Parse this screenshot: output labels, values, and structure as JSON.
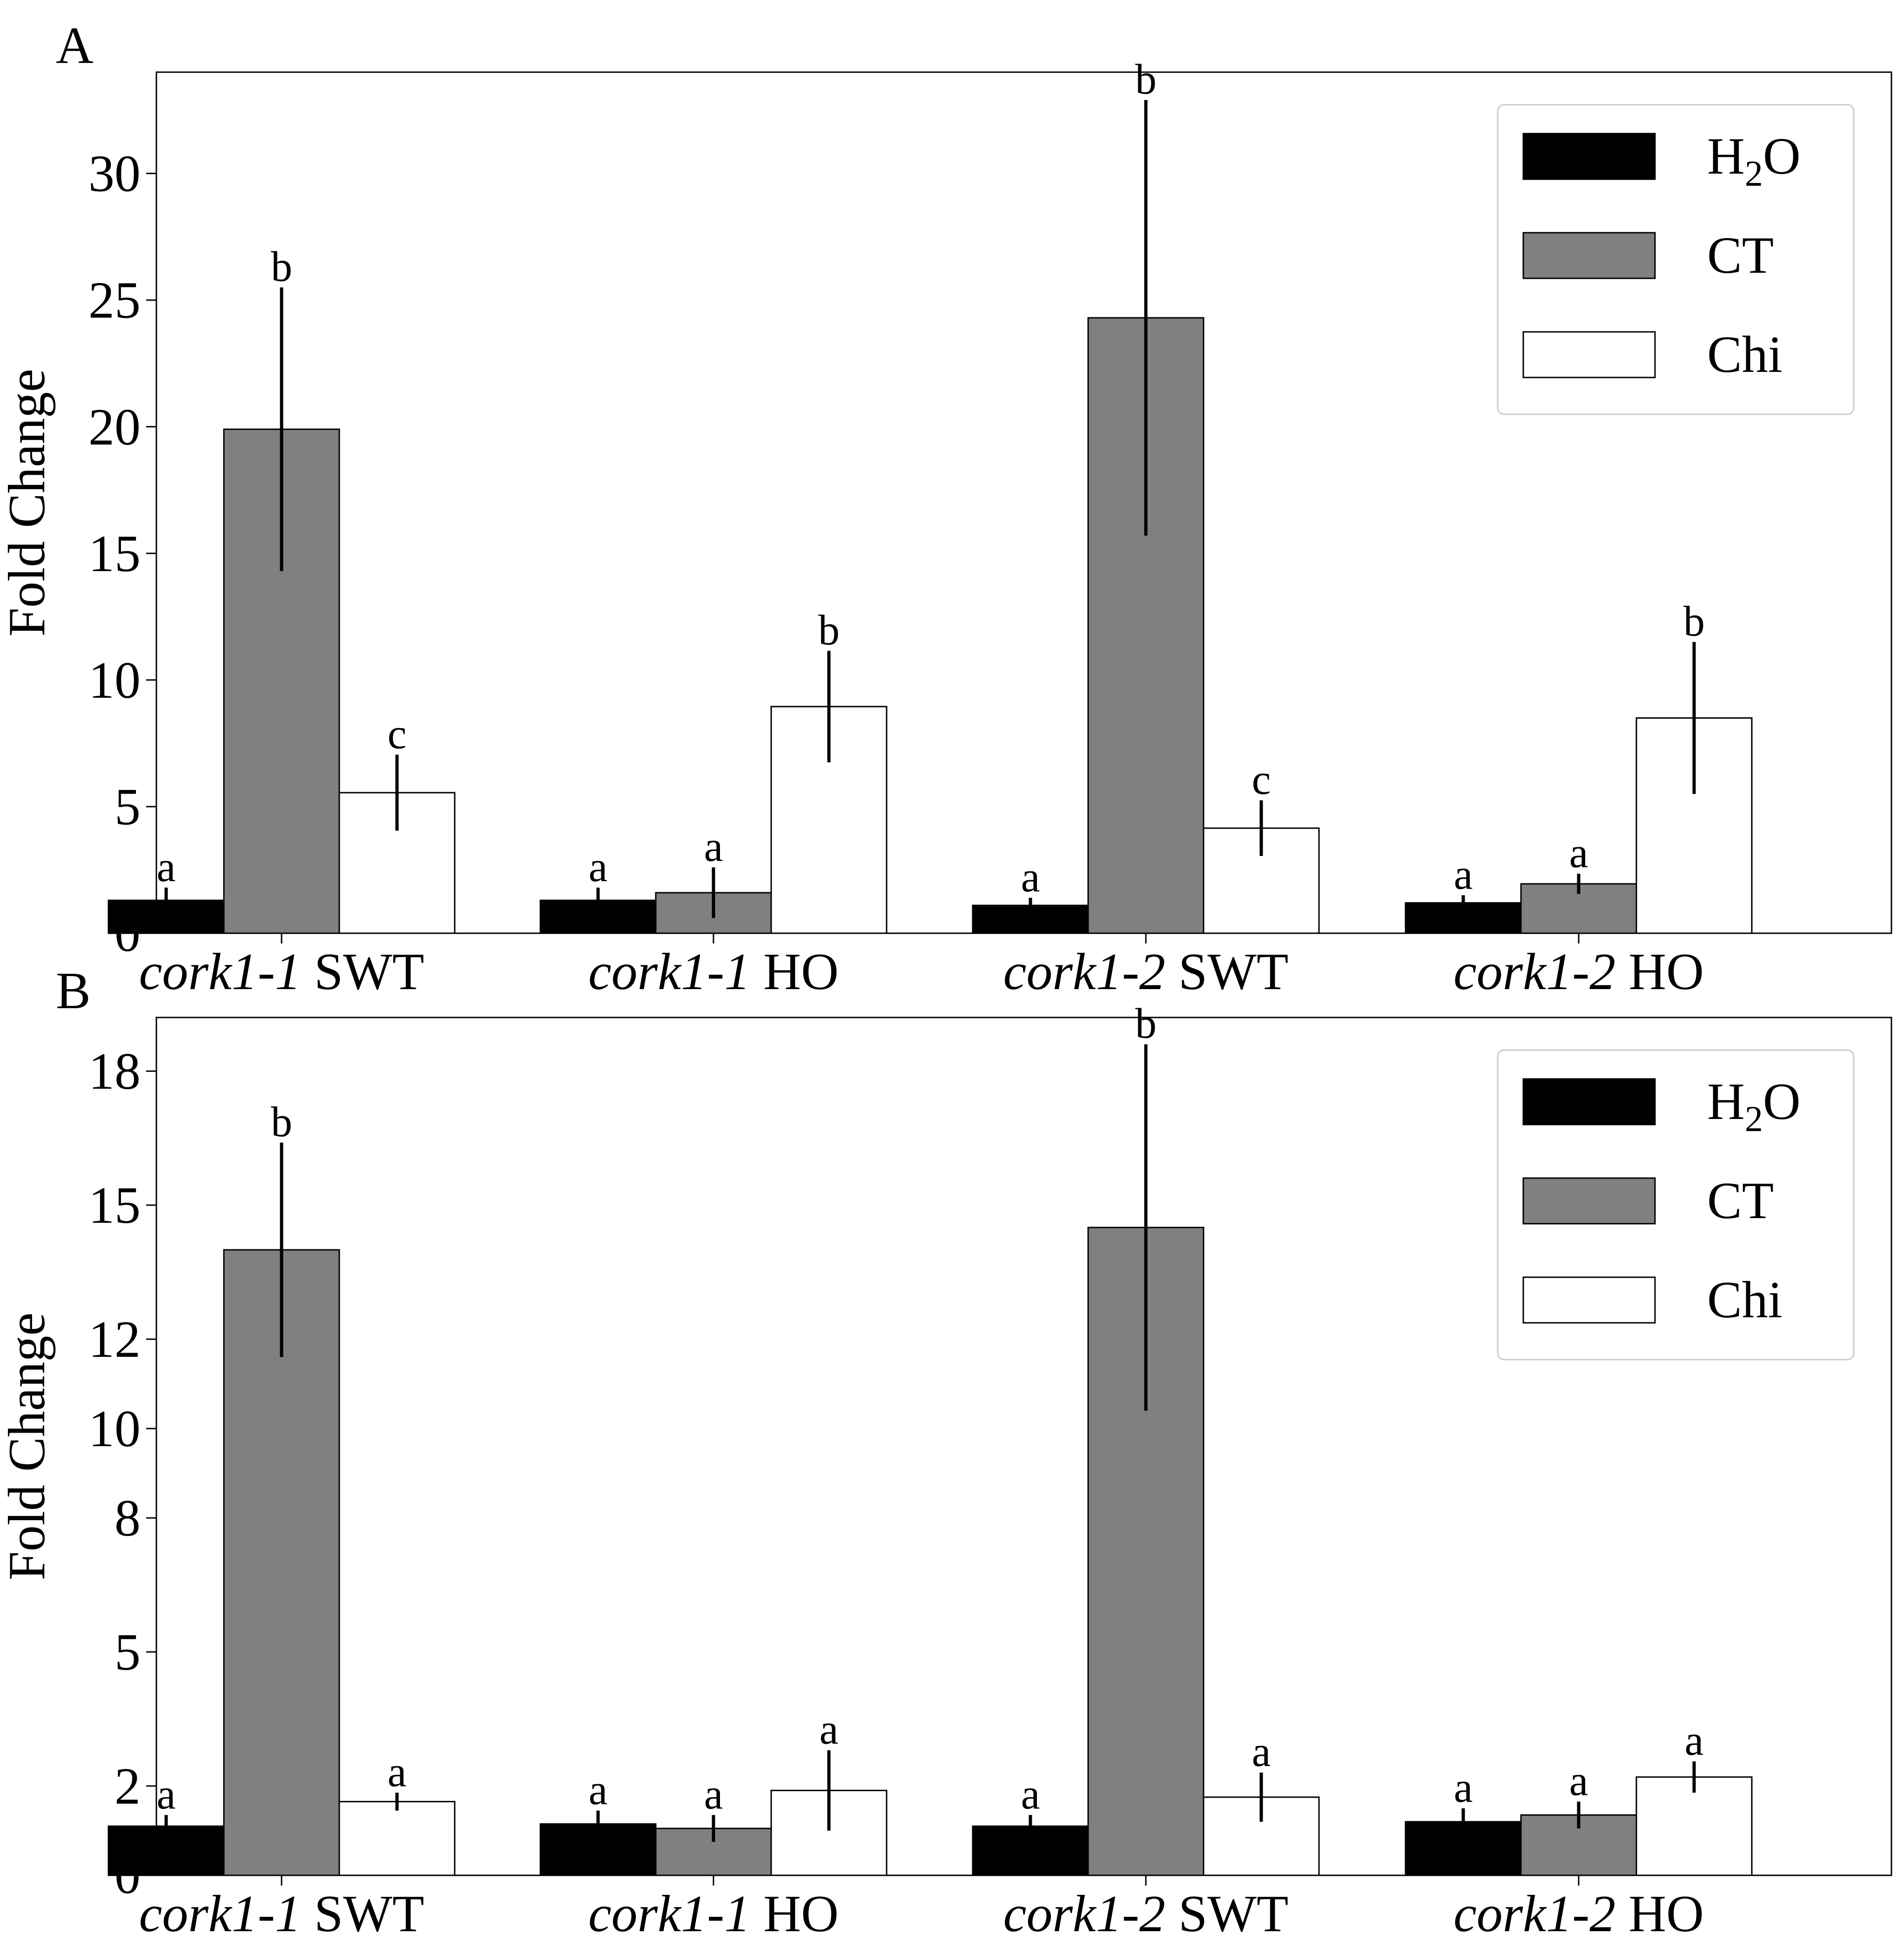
{
  "colors": {
    "H2O": "#000000",
    "CT": "#808080",
    "Chi": "#ffffff",
    "edge": "#000000"
  },
  "chart_data": [
    {
      "type": "bar",
      "panel": "A",
      "ylabel": "Fold Change",
      "ylim": [
        0,
        34
      ],
      "yticks": [
        0,
        5,
        10,
        15,
        20,
        25,
        30
      ],
      "ytick_labels": [
        "0",
        "5",
        "10",
        "15",
        "20",
        "25",
        "30"
      ],
      "categories": [
        {
          "italic": "cork1-1",
          "plain": "SWT"
        },
        {
          "italic": "cork1-1",
          "plain": "HO"
        },
        {
          "italic": "cork1-2",
          "plain": "SWT"
        },
        {
          "italic": "cork1-2",
          "plain": "HO"
        }
      ],
      "series": [
        {
          "name": "H2O",
          "label_main": "H",
          "label_sub": "2",
          "label_tail": "O",
          "values": [
            1.3,
            1.3,
            1.1,
            1.2
          ],
          "err": [
            0.5,
            0.5,
            0.3,
            0.3
          ],
          "letters": [
            "a",
            "a",
            "a",
            "a"
          ]
        },
        {
          "name": "CT",
          "label_main": "CT",
          "label_sub": "",
          "label_tail": "",
          "values": [
            19.9,
            1.6,
            24.3,
            1.95
          ],
          "err": [
            5.6,
            1.0,
            8.6,
            0.4
          ],
          "letters": [
            "b",
            "a",
            "b",
            "a"
          ]
        },
        {
          "name": "Chi",
          "label_main": "Chi",
          "label_sub": "",
          "label_tail": "",
          "values": [
            5.55,
            8.95,
            4.15,
            8.5
          ],
          "err": [
            1.5,
            2.2,
            1.1,
            3.0
          ],
          "letters": [
            "c",
            "b",
            "c",
            "b"
          ]
        }
      ],
      "legend_position": "top-right"
    },
    {
      "type": "bar",
      "panel": "B",
      "ylabel": "Fold Change",
      "ylim": [
        0,
        19.2
      ],
      "yticks": [
        0,
        2,
        5,
        8,
        10,
        12,
        15,
        18
      ],
      "ytick_labels": [
        "0",
        "2",
        "5",
        "8",
        "10",
        "12",
        "15",
        "18"
      ],
      "categories": [
        {
          "italic": "cork1-1",
          "plain": "SWT"
        },
        {
          "italic": "cork1-1",
          "plain": "HO"
        },
        {
          "italic": "cork1-2",
          "plain": "SWT"
        },
        {
          "italic": "cork1-2",
          "plain": "HO"
        }
      ],
      "series": [
        {
          "name": "H2O",
          "label_main": "H",
          "label_sub": "2",
          "label_tail": "O",
          "values": [
            1.1,
            1.15,
            1.1,
            1.2
          ],
          "err": [
            0.25,
            0.3,
            0.25,
            0.3
          ],
          "letters": [
            "a",
            "a",
            "a",
            "a"
          ]
        },
        {
          "name": "CT",
          "label_main": "CT",
          "label_sub": "",
          "label_tail": "",
          "values": [
            14.0,
            1.05,
            14.5,
            1.35
          ],
          "err": [
            2.4,
            0.3,
            4.1,
            0.3
          ],
          "letters": [
            "b",
            "a",
            "b",
            "a"
          ]
        },
        {
          "name": "Chi",
          "label_main": "Chi",
          "label_sub": "",
          "label_tail": "",
          "values": [
            1.65,
            1.9,
            1.75,
            2.2
          ],
          "err": [
            0.2,
            0.9,
            0.55,
            0.35
          ],
          "letters": [
            "a",
            "a",
            "a",
            "a"
          ]
        }
      ],
      "legend_position": "top-right"
    }
  ]
}
